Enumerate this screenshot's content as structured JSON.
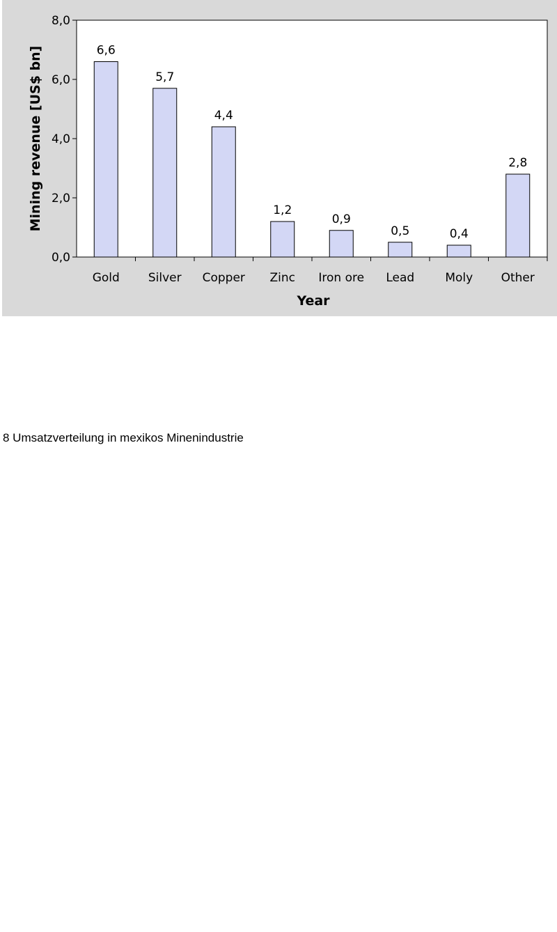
{
  "chart_data": {
    "type": "bar",
    "categories": [
      "Gold",
      "Silver",
      "Copper",
      "Zinc",
      "Iron ore",
      "Lead",
      "Moly",
      "Other"
    ],
    "values": [
      6.6,
      5.7,
      4.4,
      1.2,
      0.9,
      0.5,
      0.4,
      2.8
    ],
    "value_labels": [
      "6,6",
      "5,7",
      "4,4",
      "1,2",
      "0,9",
      "0,5",
      "0,4",
      "2,8"
    ],
    "xlabel": "Year",
    "ylabel": "Mining revenue [US$ bn]",
    "ylim": [
      0,
      8
    ],
    "yticks": [
      0,
      2,
      4,
      6,
      8
    ],
    "ytick_labels": [
      "0,0",
      "2,0",
      "4,0",
      "6,0",
      "8,0"
    ],
    "grid": false,
    "legend": "none",
    "colors": {
      "bar_fill": "#d3d7f5",
      "bar_stroke": "#000000",
      "panel_bg": "#d9d9d9",
      "plot_bg": "#ffffff"
    }
  },
  "caption": "8 Umsatzverteilung in mexikos Minenindustrie"
}
